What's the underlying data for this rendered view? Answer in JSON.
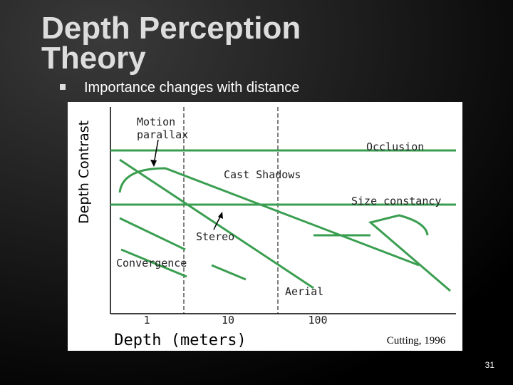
{
  "slide": {
    "title_lines": [
      "Depth Perception",
      "Theory"
    ],
    "bullet": "Importance changes with distance",
    "page_number": "31"
  },
  "figure": {
    "y_axis_label": "Depth Contrast",
    "x_axis_label": "Depth (meters)",
    "x_tick_labels": [
      "1",
      "10",
      "100"
    ],
    "source": "Cutting, 1996",
    "cue_labels": [
      "Motion parallax",
      "Occlusion",
      "Cast Shadows",
      "Size constancy",
      "Stereo",
      "Convergence",
      "Aerial"
    ]
  }
}
